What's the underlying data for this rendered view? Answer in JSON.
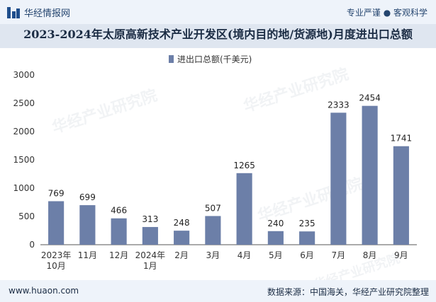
{
  "header": {
    "brand": "华经情报网",
    "tagline": "专业严谨 ● 客观科学"
  },
  "chart_data": {
    "type": "bar",
    "title": "2023-2024年太原高新技术产业开发区(境内目的地/货源地)月度进出口总额",
    "legend": [
      "进出口总额(千美元)"
    ],
    "categories": [
      "2023年\n10月",
      "11月",
      "12月",
      "2024年\n1月",
      "2月",
      "3月",
      "4月",
      "5月",
      "6月",
      "7月",
      "8月",
      "9月"
    ],
    "series": [
      {
        "name": "进出口总额(千美元)",
        "values": [
          769,
          699,
          466,
          313,
          248,
          507,
          1265,
          240,
          235,
          2333,
          2454,
          1741
        ]
      }
    ],
    "ylim": [
      0,
      3000
    ],
    "yticks": [
      0,
      500,
      1000,
      1500,
      2000,
      2500,
      3000
    ],
    "xlabel": "",
    "ylabel": "",
    "bar_color": "#6c7fa8"
  },
  "footer": {
    "url": "www.huaon.com",
    "source": "数据来源：中国海关，华经产业研究院整理"
  },
  "watermarks": [
    "华经产业研究院",
    "www.huaon.com"
  ]
}
